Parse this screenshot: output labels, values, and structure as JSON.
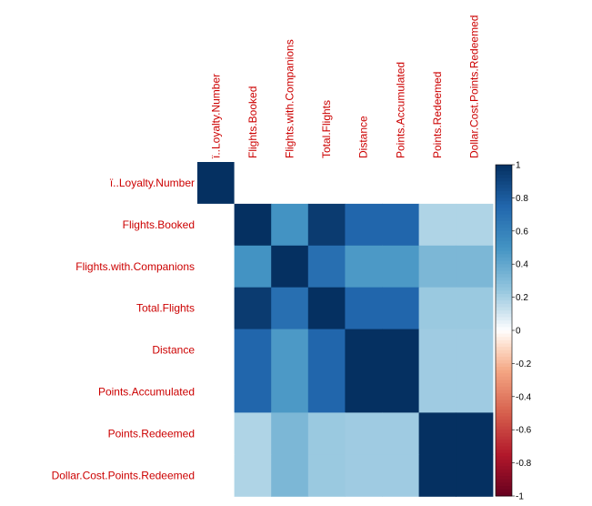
{
  "chart_data": {
    "type": "heatmap",
    "title": "",
    "variables": [
      "ï..Loyalty.Number",
      "Flights.Booked",
      "Flights.with.Companions",
      "Total.Flights",
      "Distance",
      "Points.Accumulated",
      "Points.Redeemed",
      "Dollar.Cost.Points.Redeemed"
    ],
    "matrix": [
      [
        1.0,
        0.0,
        0.0,
        0.0,
        0.0,
        0.0,
        0.0,
        0.0
      ],
      [
        0.0,
        1.0,
        0.5,
        0.95,
        0.75,
        0.75,
        0.18,
        0.18
      ],
      [
        0.0,
        0.5,
        1.0,
        0.7,
        0.47,
        0.47,
        0.32,
        0.32
      ],
      [
        0.0,
        0.95,
        0.7,
        1.0,
        0.75,
        0.75,
        0.23,
        0.23
      ],
      [
        0.0,
        0.75,
        0.47,
        0.75,
        1.0,
        1.0,
        0.22,
        0.22
      ],
      [
        0.0,
        0.75,
        0.47,
        0.75,
        1.0,
        1.0,
        0.22,
        0.22
      ],
      [
        0.0,
        0.18,
        0.32,
        0.23,
        0.22,
        0.22,
        1.0,
        1.0
      ],
      [
        0.0,
        0.18,
        0.32,
        0.23,
        0.22,
        0.22,
        1.0,
        1.0
      ]
    ],
    "colorbar": {
      "range": [
        -1,
        1
      ],
      "ticks": [
        "1",
        "0.8",
        "0.6",
        "0.4",
        "0.2",
        "0",
        "-0.2",
        "-0.4",
        "-0.6",
        "-0.8",
        "-1"
      ],
      "tick_values": [
        1,
        0.8,
        0.6,
        0.4,
        0.2,
        0,
        -0.2,
        -0.4,
        -0.6,
        -0.8,
        -1
      ]
    },
    "colors": {
      "negative_end": "#67001f",
      "neutral": "#ffffff",
      "positive_end": "#053061",
      "label_color": "#cc0000"
    }
  }
}
